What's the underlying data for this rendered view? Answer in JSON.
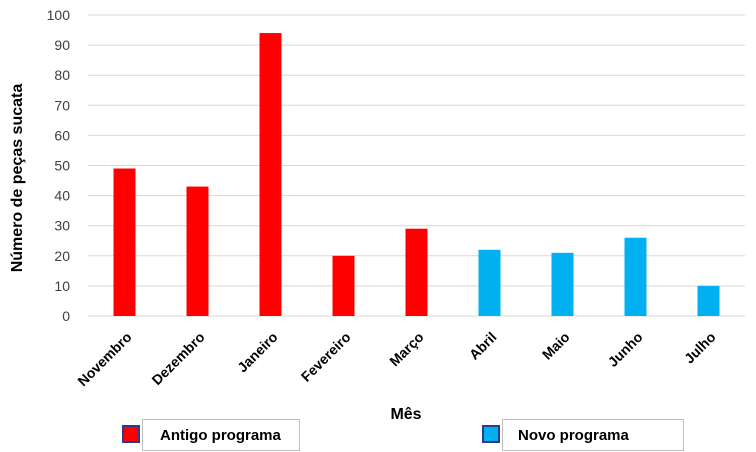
{
  "chart_data": {
    "type": "bar",
    "categories": [
      "Novembro",
      "Dezembro",
      "Janeiro",
      "Fevereiro",
      "Março",
      "Abril",
      "Maio",
      "Junho",
      "Julho"
    ],
    "values": [
      49,
      43,
      94,
      20,
      29,
      22,
      21,
      26,
      10
    ],
    "groups": [
      "Antigo programa",
      "Antigo programa",
      "Antigo programa",
      "Antigo programa",
      "Antigo programa",
      "Novo programa",
      "Novo programa",
      "Novo programa",
      "Novo programa"
    ],
    "title": "",
    "xlabel": "Mês",
    "ylabel": "Número de peças sucata",
    "ylim": [
      0,
      100
    ],
    "yticks": [
      0,
      10,
      20,
      30,
      40,
      50,
      60,
      70,
      80,
      90,
      100
    ],
    "grid": true,
    "legend": {
      "placement": "bottom",
      "entries": [
        {
          "label": "Antigo programa",
          "color": "#ff0000"
        },
        {
          "label": "Novo programa",
          "color": "#00b0f0"
        }
      ]
    }
  }
}
